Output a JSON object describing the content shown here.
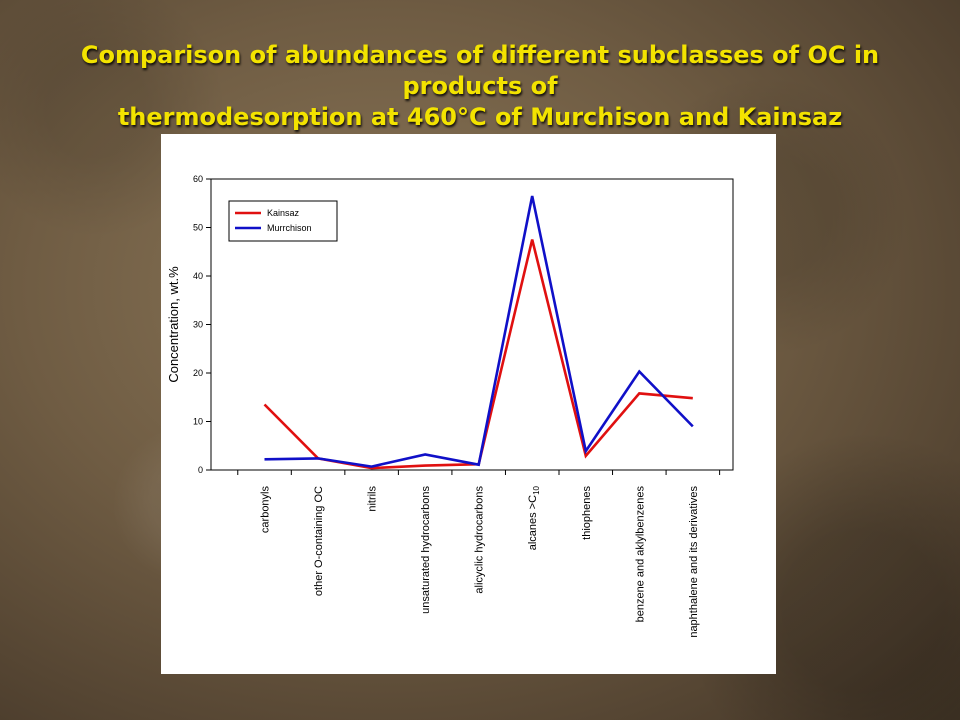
{
  "slide": {
    "title_line1": "Comparison of abundances of different subclasses of OC in products of",
    "title_line2": "thermodesorption at 460°C of Murchison and Kainsaz",
    "title_color": "#f3e300"
  },
  "chart_data": {
    "type": "line",
    "title": "",
    "xlabel": "",
    "ylabel": "Concentration, wt.%",
    "ylim": [
      0,
      60
    ],
    "yticks": [
      0,
      10,
      20,
      30,
      40,
      50,
      60
    ],
    "grid": false,
    "legend_position": "top-left",
    "categories": [
      "carbonyls",
      "other O-containing OC",
      "nitrils",
      "unsaturated hydrocarbons",
      "alicyclic hydrocarbons",
      "alcanes >C10",
      "thiophenes",
      "benzene and aklylbenzenes",
      "naphthalene and its derivatives"
    ],
    "series": [
      {
        "name": "Kainsaz",
        "color": "#e01010",
        "values": [
          13.5,
          2.4,
          0.4,
          0.9,
          1.2,
          47.5,
          2.9,
          15.8,
          14.8
        ]
      },
      {
        "name": "Murrchison",
        "color": "#1010c8",
        "values": [
          2.2,
          2.4,
          0.7,
          3.2,
          1.1,
          56.5,
          3.9,
          20.3,
          9.0
        ]
      }
    ]
  }
}
